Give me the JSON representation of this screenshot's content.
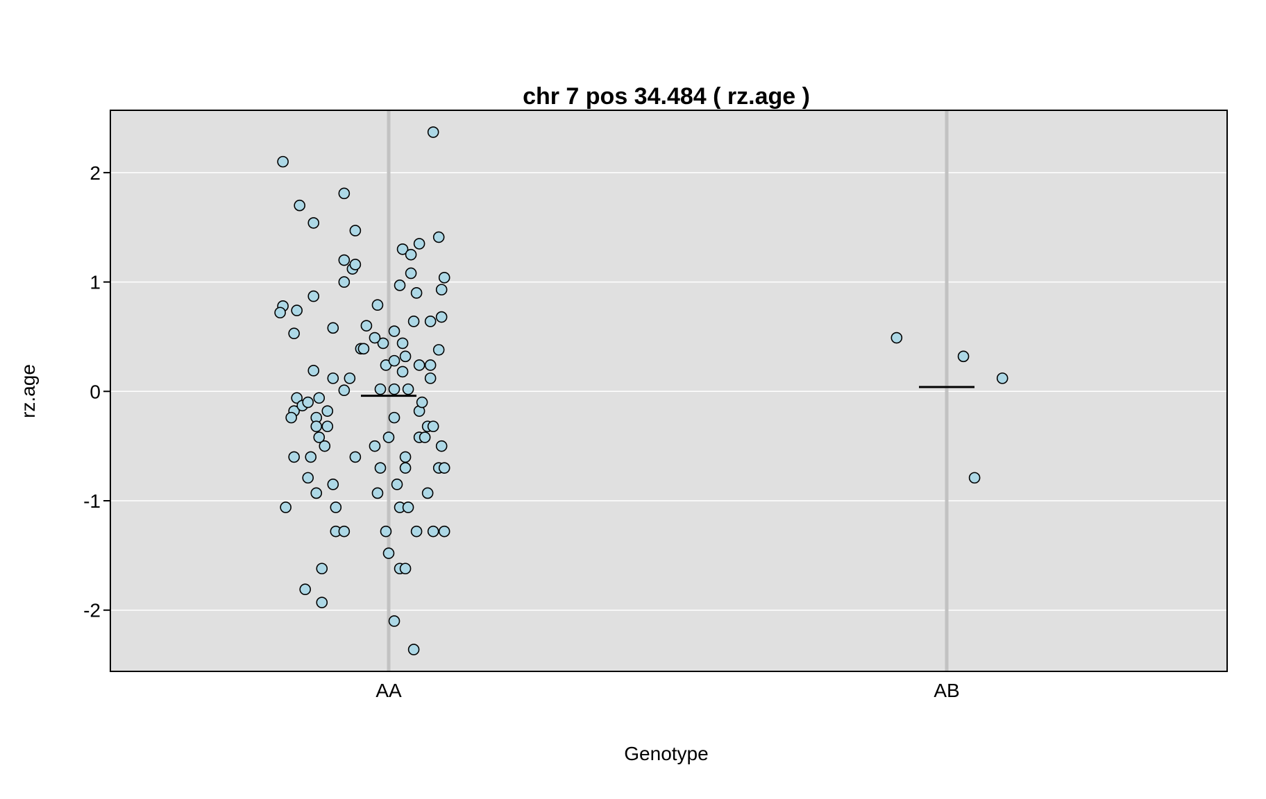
{
  "chart_data": {
    "type": "scatter",
    "title": "chr 7 pos 34.484 ( rz.age )",
    "xlabel": "Genotype",
    "ylabel": "rz.age",
    "categories": [
      "AA",
      "AB"
    ],
    "ylim": [
      -2.56,
      2.57
    ],
    "yticks": [
      -2,
      -1,
      0,
      1,
      2
    ],
    "grid": true,
    "point_fill": "#ADD8E6",
    "point_stroke": "#000000",
    "panel_background": "#E0E0E0",
    "category_line_color": "#C2C2C2",
    "series": [
      {
        "category": "AA",
        "mean": -0.04,
        "points": [
          [
            -0.38,
            2.1
          ],
          [
            -0.16,
            1.81
          ],
          [
            -0.32,
            1.7
          ],
          [
            -0.27,
            1.54
          ],
          [
            -0.12,
            1.47
          ],
          [
            -0.16,
            1.0
          ],
          [
            -0.27,
            0.87
          ],
          [
            -0.38,
            0.78
          ],
          [
            -0.33,
            0.74
          ],
          [
            -0.39,
            0.72
          ],
          [
            -0.34,
            0.53
          ],
          [
            -0.2,
            0.58
          ],
          [
            -0.08,
            0.6
          ],
          [
            -0.04,
            0.79
          ],
          [
            -0.02,
            0.44
          ],
          [
            -0.05,
            0.49
          ],
          [
            -0.1,
            0.39
          ],
          [
            -0.09,
            0.39
          ],
          [
            -0.16,
            0.01
          ],
          [
            -0.27,
            0.19
          ],
          [
            -0.2,
            0.12
          ],
          [
            -0.14,
            0.12
          ],
          [
            -0.33,
            -0.06
          ],
          [
            -0.34,
            -0.18
          ],
          [
            -0.31,
            -0.13
          ],
          [
            -0.29,
            -0.1
          ],
          [
            -0.25,
            -0.06
          ],
          [
            -0.35,
            -0.24
          ],
          [
            -0.26,
            -0.24
          ],
          [
            -0.22,
            -0.18
          ],
          [
            -0.26,
            -0.32
          ],
          [
            -0.22,
            -0.32
          ],
          [
            -0.25,
            -0.42
          ],
          [
            -0.23,
            -0.5
          ],
          [
            -0.34,
            -0.6
          ],
          [
            -0.28,
            -0.6
          ],
          [
            -0.12,
            -0.6
          ],
          [
            -0.29,
            -0.79
          ],
          [
            -0.26,
            -0.93
          ],
          [
            -0.2,
            -0.85
          ],
          [
            -0.37,
            -1.06
          ],
          [
            -0.19,
            -1.06
          ],
          [
            -0.19,
            -1.28
          ],
          [
            -0.16,
            -1.28
          ],
          [
            -0.24,
            -1.62
          ],
          [
            -0.3,
            -1.81
          ],
          [
            -0.24,
            -1.93
          ],
          [
            -0.13,
            1.12
          ],
          [
            -0.12,
            1.16
          ],
          [
            -0.16,
            1.2
          ],
          [
            0.09,
            -2.36
          ],
          [
            0.02,
            -2.1
          ],
          [
            0.0,
            -1.48
          ],
          [
            -0.01,
            -1.28
          ],
          [
            -0.04,
            -0.93
          ],
          [
            -0.03,
            -0.7
          ],
          [
            -0.05,
            -0.5
          ],
          [
            0.0,
            -0.42
          ],
          [
            0.02,
            -0.24
          ],
          [
            -0.03,
            0.02
          ],
          [
            0.02,
            0.02
          ],
          [
            -0.01,
            0.24
          ],
          [
            0.02,
            0.28
          ],
          [
            0.05,
            0.18
          ],
          [
            0.06,
            0.32
          ],
          [
            0.05,
            0.44
          ],
          [
            0.02,
            0.55
          ],
          [
            0.04,
            0.97
          ],
          [
            0.05,
            1.3
          ],
          [
            0.06,
            -0.6
          ],
          [
            0.06,
            -0.7
          ],
          [
            0.03,
            -0.85
          ],
          [
            0.04,
            -1.06
          ],
          [
            0.07,
            -1.06
          ],
          [
            0.04,
            -1.62
          ],
          [
            0.06,
            -1.62
          ],
          [
            0.07,
            0.02
          ],
          [
            0.08,
            1.08
          ],
          [
            0.08,
            1.25
          ],
          [
            0.09,
            0.64
          ],
          [
            0.1,
            0.9
          ],
          [
            0.1,
            -1.28
          ],
          [
            0.11,
            1.35
          ],
          [
            0.11,
            0.24
          ],
          [
            0.11,
            -0.18
          ],
          [
            0.11,
            -0.42
          ],
          [
            0.12,
            -0.1
          ],
          [
            0.13,
            -0.42
          ],
          [
            0.14,
            -0.93
          ],
          [
            0.14,
            -0.32
          ],
          [
            0.15,
            0.24
          ],
          [
            0.15,
            0.12
          ],
          [
            0.15,
            0.64
          ],
          [
            0.16,
            -0.32
          ],
          [
            0.16,
            -1.28
          ],
          [
            0.16,
            2.37
          ],
          [
            0.18,
            0.38
          ],
          [
            0.18,
            -0.7
          ],
          [
            0.18,
            1.41
          ],
          [
            0.19,
            -0.5
          ],
          [
            0.19,
            0.93
          ],
          [
            0.19,
            0.68
          ],
          [
            0.2,
            1.04
          ],
          [
            0.2,
            -0.7
          ],
          [
            0.2,
            -1.28
          ]
        ]
      },
      {
        "category": "AB",
        "mean": 0.04,
        "points": [
          [
            -0.18,
            0.49
          ],
          [
            0.06,
            0.32
          ],
          [
            0.1,
            -0.79
          ],
          [
            0.2,
            0.12
          ]
        ]
      }
    ]
  }
}
